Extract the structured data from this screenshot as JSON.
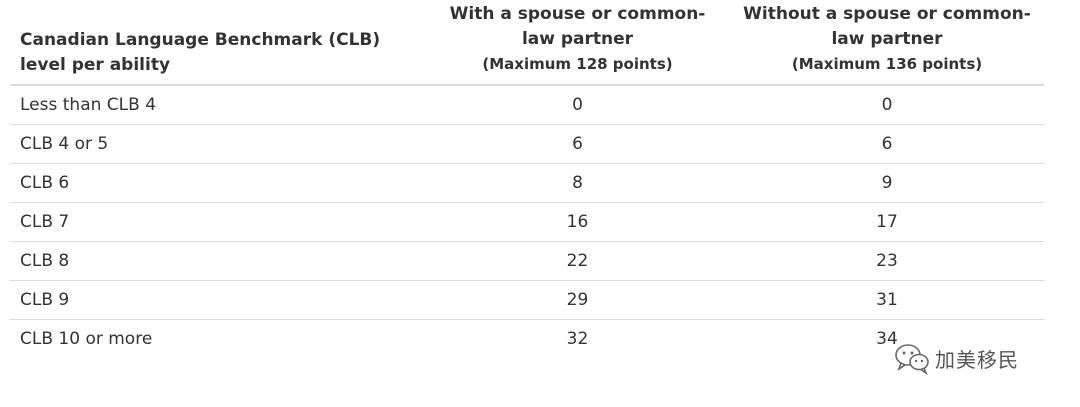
{
  "table": {
    "headers": {
      "col1": "Canadian Language Benchmark (CLB) level per ability",
      "col2_title": "With a spouse or common-law partner",
      "col2_sub": "(Maximum 128 points)",
      "col3_title": "Without a spouse or common-law partner",
      "col3_sub": "(Maximum 136 points)"
    },
    "rows": [
      {
        "level": "Less than CLB 4",
        "with_spouse": "0",
        "without_spouse": "0"
      },
      {
        "level": "CLB 4 or 5",
        "with_spouse": "6",
        "without_spouse": "6"
      },
      {
        "level": "CLB 6",
        "with_spouse": "8",
        "without_spouse": "9"
      },
      {
        "level": "CLB 7",
        "with_spouse": "16",
        "without_spouse": "17"
      },
      {
        "level": "CLB 8",
        "with_spouse": "22",
        "without_spouse": "23"
      },
      {
        "level": "CLB 9",
        "with_spouse": "29",
        "without_spouse": "31"
      },
      {
        "level": "CLB 10 or more",
        "with_spouse": "32",
        "without_spouse": "34"
      }
    ]
  },
  "watermark": {
    "text": "加美移民",
    "icon": "wechat-logo-icon"
  }
}
